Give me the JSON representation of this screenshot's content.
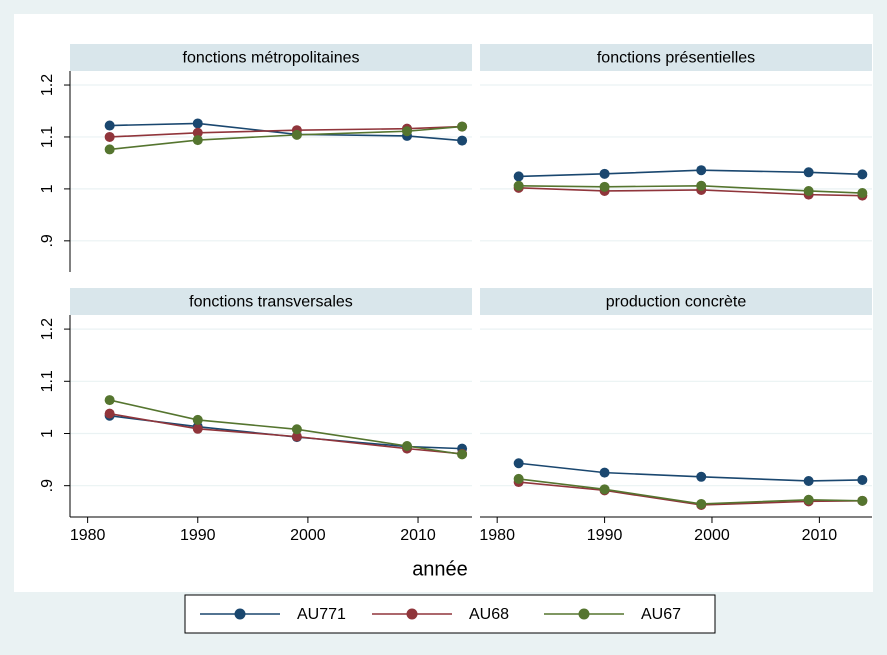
{
  "chart_data": [
    {
      "type": "line",
      "title": "fonctions métropolitaines",
      "x": [
        1982,
        1990,
        1999,
        2009,
        2014
      ],
      "xlim": [
        1978.4,
        2014.9
      ],
      "ylim": [
        0.84,
        1.227
      ],
      "yticks": [
        {
          "value": 0.9,
          "label": ".9"
        },
        1,
        1.1,
        1.2
      ],
      "grid": true,
      "series": [
        {
          "name": "AU771",
          "color": "#1a476f",
          "values": [
            1.122,
            1.126,
            1.105,
            1.102,
            1.093
          ]
        },
        {
          "name": "AU68",
          "color": "#90353b",
          "values": [
            1.1,
            1.108,
            1.113,
            1.116,
            1.12
          ]
        },
        {
          "name": "AU67",
          "color": "#55752f",
          "values": [
            1.076,
            1.094,
            1.104,
            1.111,
            1.12
          ]
        }
      ]
    },
    {
      "type": "line",
      "title": "fonctions présentielles",
      "x": [
        1982,
        1990,
        1999,
        2009,
        2014
      ],
      "xlim": [
        1978.4,
        2014.9
      ],
      "ylim": [
        0.84,
        1.227
      ],
      "yticks": [
        {
          "value": 0.9,
          "label": ".9"
        },
        1,
        1.1,
        1.2
      ],
      "grid": true,
      "series": [
        {
          "name": "AU771",
          "color": "#1a476f",
          "values": [
            1.024,
            1.029,
            1.036,
            1.032,
            1.028
          ]
        },
        {
          "name": "AU68",
          "color": "#90353b",
          "values": [
            1.002,
            0.996,
            0.998,
            0.989,
            0.987
          ]
        },
        {
          "name": "AU67",
          "color": "#55752f",
          "values": [
            1.006,
            1.004,
            1.006,
            0.996,
            0.992
          ]
        }
      ]
    },
    {
      "type": "line",
      "title": "fonctions transversales",
      "x": [
        1982,
        1990,
        1999,
        2009,
        2014
      ],
      "xlim": [
        1978.4,
        2014.9
      ],
      "xticks": [
        1980,
        1990,
        2000,
        2010
      ],
      "ylim": [
        0.84,
        1.227
      ],
      "yticks": [
        {
          "value": 0.9,
          "label": ".9"
        },
        1,
        1.1,
        1.2
      ],
      "grid": true,
      "series": [
        {
          "name": "AU771",
          "color": "#1a476f",
          "values": [
            1.034,
            1.013,
            0.993,
            0.975,
            0.971
          ]
        },
        {
          "name": "AU68",
          "color": "#90353b",
          "values": [
            1.038,
            1.009,
            0.994,
            0.971,
            0.961
          ]
        },
        {
          "name": "AU67",
          "color": "#55752f",
          "values": [
            1.064,
            1.026,
            1.008,
            0.976,
            0.96
          ]
        }
      ]
    },
    {
      "type": "line",
      "title": "production concrète",
      "x": [
        1982,
        1990,
        1999,
        2009,
        2014
      ],
      "xlim": [
        1978.4,
        2014.9
      ],
      "xticks": [
        1980,
        1990,
        2000,
        2010
      ],
      "ylim": [
        0.84,
        1.227
      ],
      "yticks": [
        {
          "value": 0.9,
          "label": ".9"
        },
        1,
        1.1,
        1.2
      ],
      "grid": true,
      "series": [
        {
          "name": "AU771",
          "color": "#1a476f",
          "values": [
            0.943,
            0.925,
            0.917,
            0.909,
            0.911
          ]
        },
        {
          "name": "AU68",
          "color": "#90353b",
          "values": [
            0.907,
            0.891,
            0.863,
            0.87,
            0.871
          ]
        },
        {
          "name": "AU67",
          "color": "#55752f",
          "values": [
            0.913,
            0.893,
            0.865,
            0.873,
            0.871
          ]
        }
      ]
    }
  ],
  "x_label": "année"
}
